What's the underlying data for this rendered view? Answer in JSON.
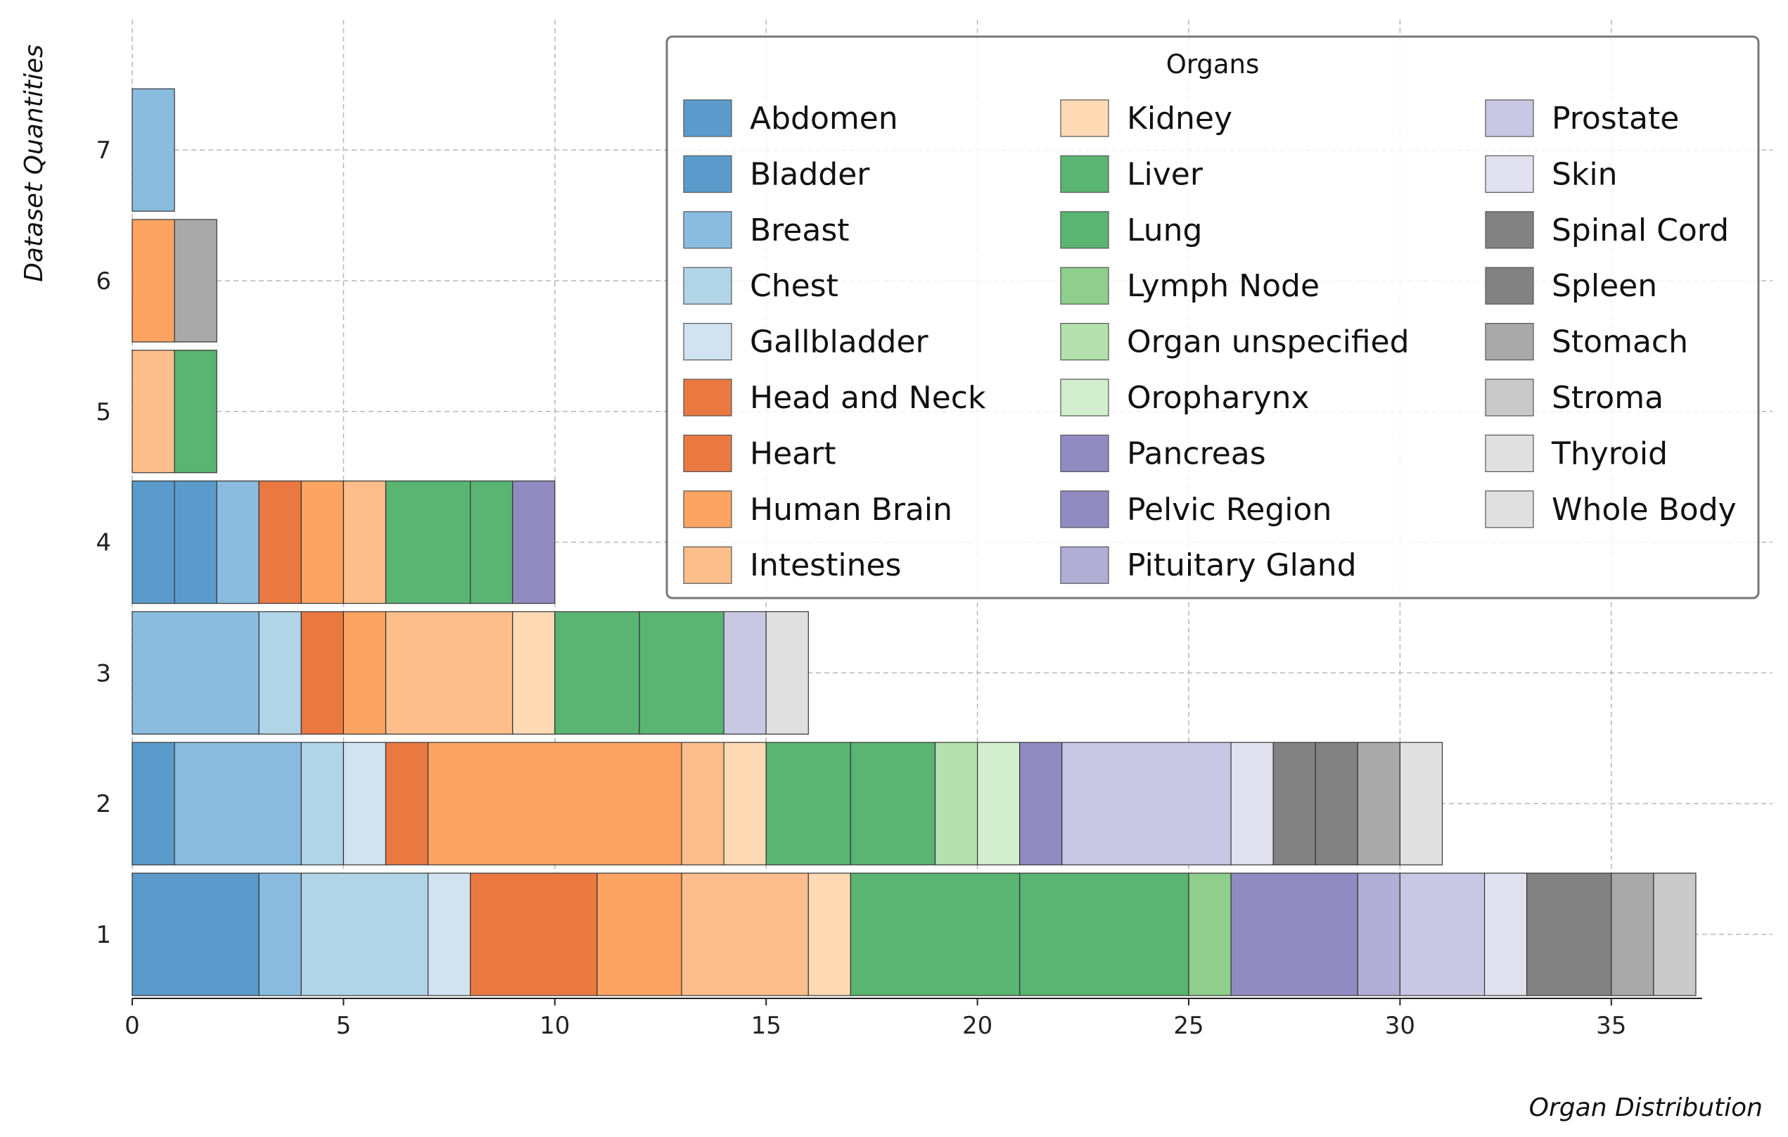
{
  "chart_data": {
    "type": "bar",
    "orientation": "horizontal-stacked",
    "xlabel": "Organ Distribution",
    "ylabel": "Dataset Quantities",
    "xlim": [
      0,
      38
    ],
    "ylim": [
      0.5,
      8
    ],
    "xticks": [
      0,
      5,
      10,
      15,
      20,
      25,
      30,
      35
    ],
    "yticks": [
      1,
      2,
      3,
      4,
      5,
      6,
      7
    ],
    "grid": true,
    "legend": {
      "title": "Organs",
      "placement": "top-right",
      "columns": 3
    },
    "organs": [
      {
        "name": "Abdomen",
        "color": "#5b9bcc"
      },
      {
        "name": "Bladder",
        "color": "#5b9bcc"
      },
      {
        "name": "Breast",
        "color": "#89bcde"
      },
      {
        "name": "Chest",
        "color": "#b1d4e7"
      },
      {
        "name": "Gallbladder",
        "color": "#d1e2f1"
      },
      {
        "name": "Head and Neck",
        "color": "#ea7941"
      },
      {
        "name": "Heart",
        "color": "#ea7941"
      },
      {
        "name": "Human Brain",
        "color": "#fda462"
      },
      {
        "name": "Intestines",
        "color": "#fdbe8b"
      },
      {
        "name": "Kidney",
        "color": "#fdd9b4"
      },
      {
        "name": "Liver",
        "color": "#5ab472"
      },
      {
        "name": "Lung",
        "color": "#5ab472"
      },
      {
        "name": "Lymph Node",
        "color": "#8fce8d"
      },
      {
        "name": "Organ unspecified",
        "color": "#b4e0ad"
      },
      {
        "name": "Oropharynx",
        "color": "#d3edcf"
      },
      {
        "name": "Pancreas",
        "color": "#918bc2"
      },
      {
        "name": "Pelvic Region",
        "color": "#918bc2"
      },
      {
        "name": "Pituitary Gland",
        "color": "#b0aed4"
      },
      {
        "name": "Prostate",
        "color": "#c8c8e4"
      },
      {
        "name": "Skin",
        "color": "#e2e1f0"
      },
      {
        "name": "Spinal Cord",
        "color": "#828282"
      },
      {
        "name": "Spleen",
        "color": "#828282"
      },
      {
        "name": "Stomach",
        "color": "#a9a9a9"
      },
      {
        "name": "Stroma",
        "color": "#c9c9c9"
      },
      {
        "name": "Thyroid",
        "color": "#e0e0e0"
      },
      {
        "name": "Whole Body",
        "color": "#e0e0e0"
      }
    ],
    "rows": [
      {
        "y": 1,
        "segments": [
          {
            "organ": "Abdomen",
            "value": 3
          },
          {
            "organ": "Breast",
            "value": 1
          },
          {
            "organ": "Chest",
            "value": 3
          },
          {
            "organ": "Gallbladder",
            "value": 1
          },
          {
            "organ": "Heart",
            "value": 3
          },
          {
            "organ": "Human Brain",
            "value": 2
          },
          {
            "organ": "Intestines",
            "value": 3
          },
          {
            "organ": "Kidney",
            "value": 1
          },
          {
            "organ": "Liver",
            "value": 4
          },
          {
            "organ": "Lung",
            "value": 4
          },
          {
            "organ": "Lymph Node",
            "value": 1
          },
          {
            "organ": "Pancreas",
            "value": 3
          },
          {
            "organ": "Pituitary Gland",
            "value": 1
          },
          {
            "organ": "Prostate",
            "value": 2
          },
          {
            "organ": "Skin",
            "value": 1
          },
          {
            "organ": "Spinal Cord",
            "value": 2
          },
          {
            "organ": "Stomach",
            "value": 1
          },
          {
            "organ": "Stroma",
            "value": 1
          }
        ]
      },
      {
        "y": 2,
        "segments": [
          {
            "organ": "Bladder",
            "value": 1
          },
          {
            "organ": "Breast",
            "value": 3
          },
          {
            "organ": "Chest",
            "value": 1
          },
          {
            "organ": "Gallbladder",
            "value": 1
          },
          {
            "organ": "Heart",
            "value": 1
          },
          {
            "organ": "Human Brain",
            "value": 6
          },
          {
            "organ": "Intestines",
            "value": 1
          },
          {
            "organ": "Kidney",
            "value": 1
          },
          {
            "organ": "Liver",
            "value": 2
          },
          {
            "organ": "Lung",
            "value": 2
          },
          {
            "organ": "Organ unspecified",
            "value": 1
          },
          {
            "organ": "Oropharynx",
            "value": 1
          },
          {
            "organ": "Pelvic Region",
            "value": 1
          },
          {
            "organ": "Prostate",
            "value": 4
          },
          {
            "organ": "Skin",
            "value": 1
          },
          {
            "organ": "Spinal Cord",
            "value": 1
          },
          {
            "organ": "Spleen",
            "value": 1
          },
          {
            "organ": "Stomach",
            "value": 1
          },
          {
            "organ": "Whole Body",
            "value": 1
          }
        ]
      },
      {
        "y": 3,
        "segments": [
          {
            "organ": "Breast",
            "value": 3
          },
          {
            "organ": "Chest",
            "value": 1
          },
          {
            "organ": "Heart",
            "value": 1
          },
          {
            "organ": "Human Brain",
            "value": 1
          },
          {
            "organ": "Intestines",
            "value": 3
          },
          {
            "organ": "Kidney",
            "value": 1
          },
          {
            "organ": "Liver",
            "value": 2
          },
          {
            "organ": "Lung",
            "value": 2
          },
          {
            "organ": "Prostate",
            "value": 1
          },
          {
            "organ": "Thyroid",
            "value": 1
          }
        ]
      },
      {
        "y": 4,
        "segments": [
          {
            "organ": "Abdomen",
            "value": 1
          },
          {
            "organ": "Bladder",
            "value": 1
          },
          {
            "organ": "Breast",
            "value": 1
          },
          {
            "organ": "Head and Neck",
            "value": 1
          },
          {
            "organ": "Human Brain",
            "value": 1
          },
          {
            "organ": "Intestines",
            "value": 1
          },
          {
            "organ": "Liver",
            "value": 2
          },
          {
            "organ": "Lung",
            "value": 1
          },
          {
            "organ": "Pancreas",
            "value": 1
          }
        ]
      },
      {
        "y": 5,
        "segments": [
          {
            "organ": "Intestines",
            "value": 1
          },
          {
            "organ": "Liver",
            "value": 1
          }
        ]
      },
      {
        "y": 6,
        "segments": [
          {
            "organ": "Human Brain",
            "value": 1
          },
          {
            "organ": "Stomach",
            "value": 1
          }
        ]
      },
      {
        "y": 7,
        "segments": [
          {
            "organ": "Breast",
            "value": 1
          }
        ]
      }
    ]
  }
}
